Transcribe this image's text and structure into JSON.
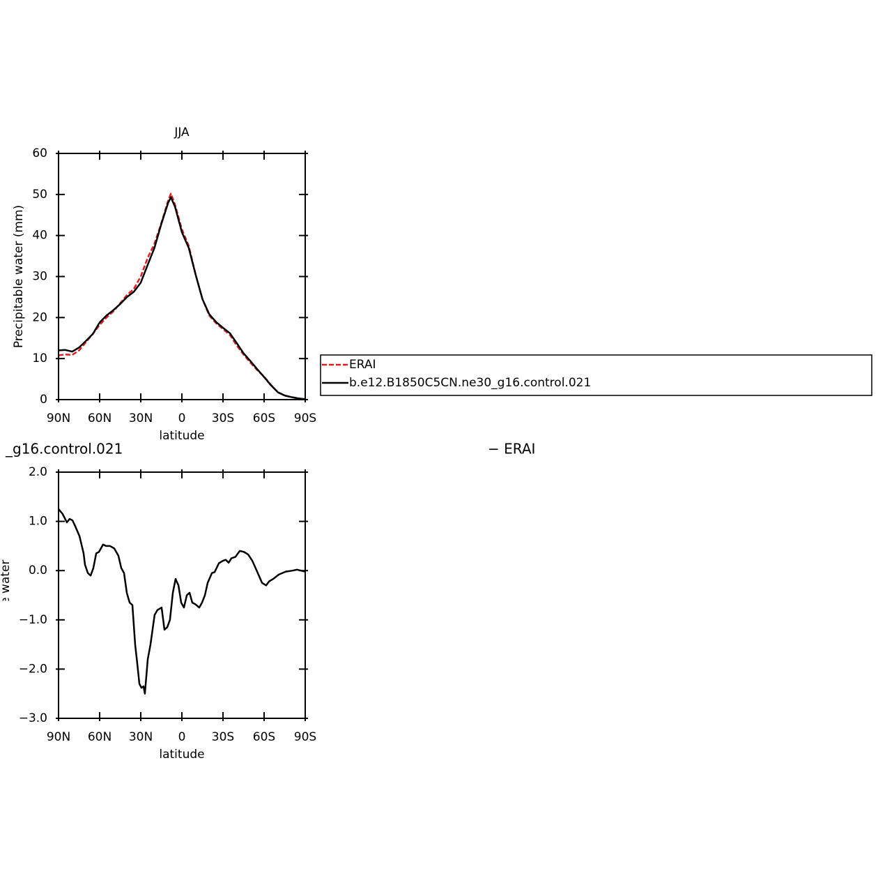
{
  "chart_data": [
    {
      "type": "line",
      "title": "JJA",
      "ylabel": "Precipitable water (mm)",
      "xlabel": "latitude",
      "xlim": [
        90,
        -90
      ],
      "xticks": [
        {
          "value": 90,
          "label": "90N"
        },
        {
          "value": 60,
          "label": "60N"
        },
        {
          "value": 30,
          "label": "30N"
        },
        0,
        {
          "value": -30,
          "label": "30S"
        },
        {
          "value": -60,
          "label": "60S"
        },
        {
          "value": -90,
          "label": "90S"
        }
      ],
      "ylim": [
        0,
        60
      ],
      "yticks": [
        0,
        10,
        20,
        30,
        40,
        50,
        60
      ],
      "x": [
        90,
        85,
        80,
        75,
        70,
        65,
        60,
        55,
        50,
        45,
        40,
        35,
        30,
        25,
        20,
        15,
        10,
        8,
        5,
        0,
        -5,
        -10,
        -15,
        -20,
        -25,
        -30,
        -35,
        -40,
        -45,
        -50,
        -55,
        -60,
        -65,
        -70,
        -75,
        -80,
        -85,
        -90
      ],
      "series": [
        {
          "name": "ERAI",
          "color": "#e41a1c",
          "dash": true,
          "values": [
            10.8,
            11.0,
            10.9,
            12,
            14,
            16,
            18.2,
            20,
            21.5,
            23.5,
            25.5,
            27,
            30,
            34.5,
            38,
            43,
            48.5,
            50.2,
            47.5,
            41.5,
            37.5,
            30.5,
            24.5,
            20.5,
            18.6,
            17.2,
            15.8,
            13.2,
            11,
            9,
            7.2,
            5.6,
            3.6,
            1.8,
            1.0,
            0.6,
            0.3,
            0
          ]
        },
        {
          "name": "b.e12.B1850C5CN.ne30_g16.control.021",
          "color": "#000000",
          "dash": false,
          "values": [
            12.0,
            12.1,
            11.7,
            12.7,
            14.3,
            16,
            18.8,
            20.5,
            21.8,
            23.3,
            25,
            26.3,
            28.5,
            32.8,
            37,
            42.8,
            48,
            49.3,
            47,
            40.8,
            37,
            30.5,
            24.5,
            20.8,
            18.9,
            17.5,
            16.2,
            13.8,
            11.3,
            9.4,
            7.4,
            5.5,
            3.5,
            1.8,
            1.0,
            0.6,
            0.3,
            0.1
          ]
        }
      ]
    },
    {
      "type": "line",
      "title_parts": [
        "_g16.control.021",
        "− ERAI"
      ],
      "ylabel": "Precipitable water (mm)",
      "xlabel": "latitude",
      "xlim": [
        90,
        -90
      ],
      "xticks": [
        {
          "value": 90,
          "label": "90N"
        },
        {
          "value": 60,
          "label": "60N"
        },
        {
          "value": 30,
          "label": "30N"
        },
        0,
        {
          "value": -30,
          "label": "30S"
        },
        {
          "value": -60,
          "label": "60S"
        },
        {
          "value": -90,
          "label": "90S"
        }
      ],
      "ylim": [
        -3,
        2
      ],
      "yticks": [
        {
          "value": 2,
          "label": "2.0"
        },
        {
          "value": 1,
          "label": "1.0"
        },
        {
          "value": 0,
          "label": "0.0"
        },
        {
          "value": -1,
          "label": "−1.0"
        },
        {
          "value": -2,
          "label": "−2.0"
        },
        {
          "value": -3,
          "label": "−3.0"
        }
      ],
      "x": [
        90,
        87,
        83.9,
        81.9,
        79.8,
        77.8,
        74.7,
        71.7,
        70.7,
        68.6,
        66.6,
        64.6,
        62.5,
        60.5,
        57.5,
        55.4,
        52.4,
        49.3,
        46.3,
        44.2,
        42.2,
        40.2,
        38.1,
        36.1,
        34.1,
        32.5,
        31,
        29.5,
        28,
        27,
        24.9,
        22.9,
        19.9,
        17.8,
        14.8,
        12.7,
        10.7,
        8.7,
        6.6,
        4.6,
        2.5,
        0.5,
        -1.5,
        -3.6,
        -5.6,
        -7.6,
        -9.7,
        -12.7,
        -14.7,
        -16.8,
        -18.8,
        -21.9,
        -23.9,
        -27,
        -30,
        -32,
        -34.1,
        -36.1,
        -39.1,
        -42.2,
        -45.3,
        -48.3,
        -51.4,
        -55.4,
        -58.5,
        -61.5,
        -63.6,
        -66.6,
        -70.7,
        -75.8,
        -80.8,
        -83.9,
        -86.9,
        -90
      ],
      "series": [
        {
          "color": "#000000",
          "dash": false,
          "values": [
            1.25,
            1.15,
            0.98,
            1.05,
            1.02,
            0.9,
            0.7,
            0.35,
            0.12,
            -0.05,
            -0.1,
            0.05,
            0.35,
            0.38,
            0.53,
            0.5,
            0.5,
            0.45,
            0.3,
            0.05,
            -0.05,
            -0.45,
            -0.65,
            -0.7,
            -1.5,
            -1.9,
            -2.3,
            -2.38,
            -2.35,
            -2.5,
            -1.8,
            -1.5,
            -0.9,
            -0.8,
            -0.75,
            -1.2,
            -1.15,
            -1.0,
            -0.45,
            -0.17,
            -0.3,
            -0.65,
            -0.75,
            -0.5,
            -0.45,
            -0.65,
            -0.68,
            -0.75,
            -0.65,
            -0.5,
            -0.25,
            -0.05,
            -0.03,
            0.15,
            0.2,
            0.22,
            0.16,
            0.25,
            0.28,
            0.4,
            0.38,
            0.33,
            0.2,
            -0.05,
            -0.25,
            -0.3,
            -0.22,
            -0.17,
            -0.08,
            -0.02,
            0.0,
            0.02,
            0.0,
            -0.02
          ]
        }
      ]
    }
  ]
}
